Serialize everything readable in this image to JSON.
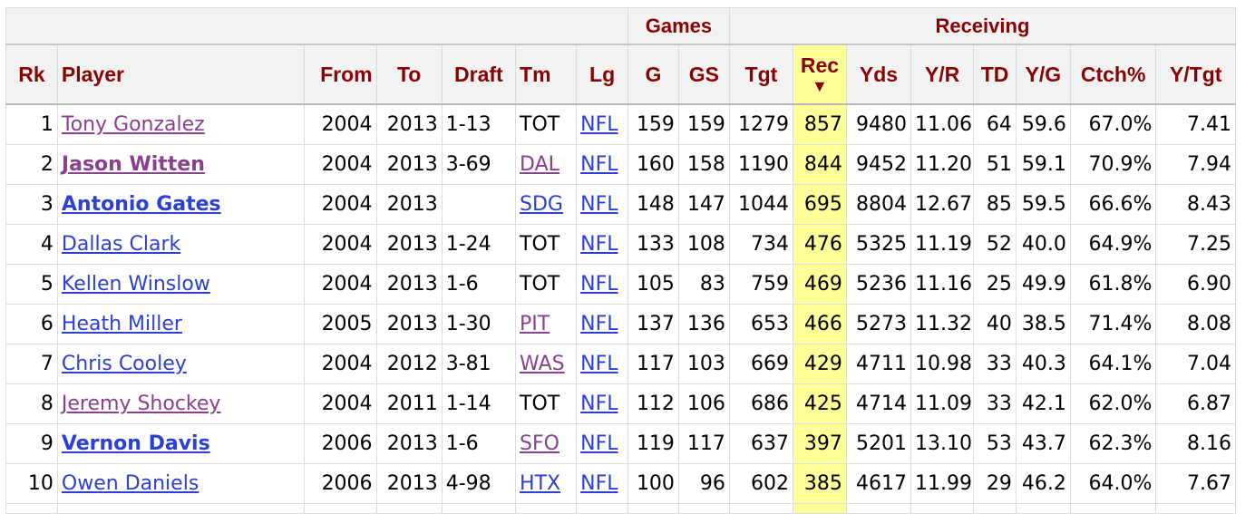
{
  "group_headers": {
    "games": "Games",
    "receiving": "Receiving"
  },
  "columns": {
    "rk": "Rk",
    "player": "Player",
    "from": "From",
    "to": "To",
    "draft": "Draft",
    "tm": "Tm",
    "lg": "Lg",
    "g": "G",
    "gs": "GS",
    "tgt": "Tgt",
    "rec": "Rec",
    "yds": "Yds",
    "yr": "Y/R",
    "td": "TD",
    "yg": "Y/G",
    "ctch": "Ctch%",
    "ytgt": "Y/Tgt"
  },
  "sort_indicator": "▼",
  "colors": {
    "header_text": "#8b0000",
    "link_blue": "#2c3fd6",
    "link_visited": "#8a3f8f",
    "sorted_col": "#ffff99"
  },
  "rows": [
    {
      "rk": "1",
      "player": "Tony Gonzalez",
      "from": "2004",
      "to": "2013",
      "draft": "1-13",
      "tm": "TOT",
      "lg": "NFL",
      "g": "159",
      "gs": "159",
      "tgt": "1279",
      "rec": "857",
      "yds": "9480",
      "yr": "11.06",
      "td": "64",
      "yg": "59.6",
      "ctch": "67.0%",
      "ytgt": "7.41"
    },
    {
      "rk": "2",
      "player": "Jason Witten",
      "from": "2004",
      "to": "2013",
      "draft": "3-69",
      "tm": "DAL",
      "lg": "NFL",
      "g": "160",
      "gs": "158",
      "tgt": "1190",
      "rec": "844",
      "yds": "9452",
      "yr": "11.20",
      "td": "51",
      "yg": "59.1",
      "ctch": "70.9%",
      "ytgt": "7.94"
    },
    {
      "rk": "3",
      "player": "Antonio Gates",
      "from": "2004",
      "to": "2013",
      "draft": "",
      "tm": "SDG",
      "lg": "NFL",
      "g": "148",
      "gs": "147",
      "tgt": "1044",
      "rec": "695",
      "yds": "8804",
      "yr": "12.67",
      "td": "85",
      "yg": "59.5",
      "ctch": "66.6%",
      "ytgt": "8.43"
    },
    {
      "rk": "4",
      "player": "Dallas Clark",
      "from": "2004",
      "to": "2013",
      "draft": "1-24",
      "tm": "TOT",
      "lg": "NFL",
      "g": "133",
      "gs": "108",
      "tgt": "734",
      "rec": "476",
      "yds": "5325",
      "yr": "11.19",
      "td": "52",
      "yg": "40.0",
      "ctch": "64.9%",
      "ytgt": "7.25"
    },
    {
      "rk": "5",
      "player": "Kellen Winslow",
      "from": "2004",
      "to": "2013",
      "draft": "1-6",
      "tm": "TOT",
      "lg": "NFL",
      "g": "105",
      "gs": "83",
      "tgt": "759",
      "rec": "469",
      "yds": "5236",
      "yr": "11.16",
      "td": "25",
      "yg": "49.9",
      "ctch": "61.8%",
      "ytgt": "6.90"
    },
    {
      "rk": "6",
      "player": "Heath Miller",
      "from": "2005",
      "to": "2013",
      "draft": "1-30",
      "tm": "PIT",
      "lg": "NFL",
      "g": "137",
      "gs": "136",
      "tgt": "653",
      "rec": "466",
      "yds": "5273",
      "yr": "11.32",
      "td": "40",
      "yg": "38.5",
      "ctch": "71.4%",
      "ytgt": "8.08"
    },
    {
      "rk": "7",
      "player": "Chris Cooley",
      "from": "2004",
      "to": "2012",
      "draft": "3-81",
      "tm": "WAS",
      "lg": "NFL",
      "g": "117",
      "gs": "103",
      "tgt": "669",
      "rec": "429",
      "yds": "4711",
      "yr": "10.98",
      "td": "33",
      "yg": "40.3",
      "ctch": "64.1%",
      "ytgt": "7.04"
    },
    {
      "rk": "8",
      "player": "Jeremy Shockey",
      "from": "2004",
      "to": "2011",
      "draft": "1-14",
      "tm": "TOT",
      "lg": "NFL",
      "g": "112",
      "gs": "106",
      "tgt": "686",
      "rec": "425",
      "yds": "4714",
      "yr": "11.09",
      "td": "33",
      "yg": "42.1",
      "ctch": "62.0%",
      "ytgt": "6.87"
    },
    {
      "rk": "9",
      "player": "Vernon Davis",
      "from": "2006",
      "to": "2013",
      "draft": "1-6",
      "tm": "SFO",
      "lg": "NFL",
      "g": "119",
      "gs": "117",
      "tgt": "637",
      "rec": "397",
      "yds": "5201",
      "yr": "13.10",
      "td": "53",
      "yg": "43.7",
      "ctch": "62.3%",
      "ytgt": "8.16"
    },
    {
      "rk": "10",
      "player": "Owen Daniels",
      "from": "2006",
      "to": "2013",
      "draft": "4-98",
      "tm": "HTX",
      "lg": "NFL",
      "g": "100",
      "gs": "96",
      "tgt": "602",
      "rec": "385",
      "yds": "4617",
      "yr": "11.99",
      "td": "29",
      "yg": "46.2",
      "ctch": "64.0%",
      "ytgt": "7.67"
    }
  ]
}
